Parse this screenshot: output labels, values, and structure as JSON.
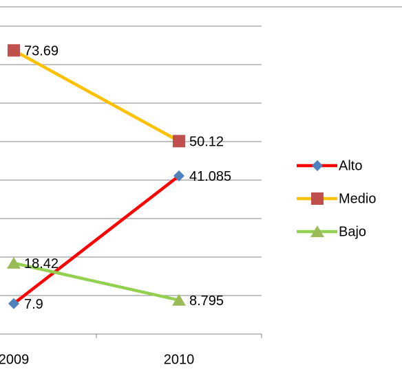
{
  "chart_data": {
    "type": "line",
    "categories": [
      "2009",
      "2010"
    ],
    "series": [
      {
        "name": "Alto",
        "color": "#ff0000",
        "marker_color": "#4f81bd",
        "marker": "diamond",
        "values": [
          7.9,
          41.085
        ]
      },
      {
        "name": "Medio",
        "color": "#ffc000",
        "marker_color": "#c0504d",
        "marker": "square",
        "values": [
          73.69,
          50.12
        ]
      },
      {
        "name": "Bajo",
        "color": "#92d050",
        "marker_color": "#9bbb59",
        "marker": "triangle",
        "values": [
          18.42,
          8.795
        ]
      }
    ],
    "ylim": [
      0,
      85
    ],
    "yticks": [
      0,
      10,
      20,
      30,
      40,
      50,
      60,
      70,
      80
    ],
    "grid": true,
    "legend": "right"
  }
}
